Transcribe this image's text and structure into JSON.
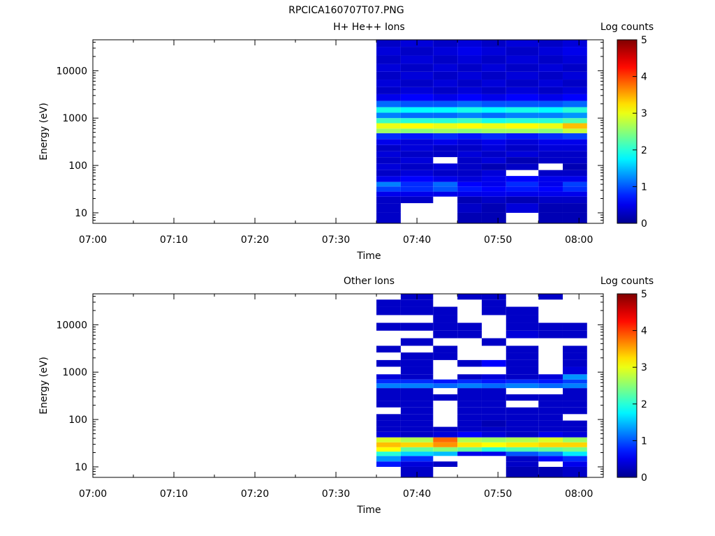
{
  "figure_title": "RPCICA160707T07.PNG",
  "chart_data": [
    {
      "type": "heatmap",
      "title": "H+ He++ Ions",
      "xlabel": "Time",
      "ylabel": "Energy (eV)",
      "x_ticks": [
        "07:00",
        "07:10",
        "07:20",
        "07:30",
        "07:40",
        "07:50",
        "08:00"
      ],
      "x_range": [
        "07:00",
        "08:03"
      ],
      "y_scale": "log",
      "y_ticks": [
        "10",
        "100",
        "1000",
        "10000"
      ],
      "y_range": [
        6,
        45000
      ],
      "colorbar": {
        "label": "Log counts",
        "ticks": [
          "0",
          "1",
          "2",
          "3",
          "4",
          "5"
        ],
        "range": [
          0,
          5
        ]
      },
      "data_start": "07:35",
      "data_end": "08:01",
      "time_bins": [
        "07:35-07:38",
        "07:38-07:42",
        "07:42-07:45",
        "07:45-07:48",
        "07:48-07:51",
        "07:51-07:55",
        "07:55-07:58",
        "07:58-08:01"
      ],
      "energy_bands": [
        {
          "low": 6,
          "high": 10,
          "values": [
            0.3,
            null,
            null,
            0.2,
            0.2,
            null,
            0.2,
            0.2
          ]
        },
        {
          "low": 10,
          "high": 16,
          "values": [
            0.3,
            null,
            null,
            0.3,
            0.2,
            0.4,
            0.2,
            0.2
          ]
        },
        {
          "low": 16,
          "high": 22,
          "values": [
            0.3,
            0.3,
            null,
            0.2,
            0.3,
            0.2,
            0.3,
            0.3
          ]
        },
        {
          "low": 22,
          "high": 28,
          "values": [
            0.5,
            0.5,
            0.5,
            0.5,
            0.5,
            0.5,
            0.5,
            0.5
          ]
        },
        {
          "low": 28,
          "high": 36,
          "values": [
            0.9,
            0.8,
            1.0,
            0.7,
            0.6,
            0.7,
            0.6,
            0.8
          ]
        },
        {
          "low": 36,
          "high": 45,
          "values": [
            1.2,
            0.8,
            1.1,
            0.6,
            0.5,
            0.8,
            0.5,
            0.9
          ]
        },
        {
          "low": 45,
          "high": 60,
          "values": [
            0.5,
            0.6,
            0.5,
            0.4,
            0.5,
            0.6,
            0.5,
            0.5
          ]
        },
        {
          "low": 60,
          "high": 80,
          "values": [
            0.3,
            0.4,
            0.3,
            0.3,
            0.4,
            null,
            0.3,
            0.3
          ]
        },
        {
          "low": 80,
          "high": 110,
          "values": [
            0.4,
            0.3,
            0.4,
            0.3,
            0.2,
            0.3,
            null,
            0.2
          ]
        },
        {
          "low": 110,
          "high": 150,
          "values": [
            0.3,
            0.4,
            null,
            0.3,
            0.4,
            0.2,
            0.3,
            0.3
          ]
        },
        {
          "low": 150,
          "high": 200,
          "values": [
            0.4,
            0.3,
            0.3,
            0.4,
            0.3,
            0.4,
            0.3,
            0.3
          ]
        },
        {
          "low": 200,
          "high": 270,
          "values": [
            0.3,
            0.4,
            0.3,
            0.3,
            0.4,
            0.3,
            0.4,
            0.4
          ]
        },
        {
          "low": 270,
          "high": 360,
          "values": [
            0.5,
            0.4,
            0.5,
            0.4,
            0.5,
            0.4,
            0.5,
            0.5
          ]
        },
        {
          "low": 360,
          "high": 480,
          "values": [
            0.8,
            0.7,
            0.8,
            0.7,
            0.8,
            0.7,
            0.8,
            0.9
          ]
        },
        {
          "low": 480,
          "high": 600,
          "values": [
            2.6,
            2.5,
            2.6,
            2.5,
            2.6,
            2.6,
            2.5,
            2.8
          ]
        },
        {
          "low": 600,
          "high": 780,
          "values": [
            3.0,
            3.1,
            3.0,
            3.1,
            3.0,
            3.1,
            3.0,
            3.4
          ]
        },
        {
          "low": 780,
          "high": 1000,
          "values": [
            2.1,
            2.0,
            2.0,
            2.1,
            1.9,
            2.0,
            2.0,
            2.2
          ]
        },
        {
          "low": 1000,
          "high": 1300,
          "values": [
            1.2,
            1.1,
            1.1,
            1.2,
            1.1,
            1.2,
            1.2,
            1.3
          ]
        },
        {
          "low": 1300,
          "high": 1700,
          "values": [
            1.9,
            1.8,
            1.8,
            1.9,
            1.8,
            1.9,
            1.8,
            2.0
          ]
        },
        {
          "low": 1700,
          "high": 2300,
          "values": [
            1.1,
            1.0,
            1.0,
            1.1,
            1.0,
            1.0,
            1.0,
            1.1
          ]
        },
        {
          "low": 2300,
          "high": 3200,
          "values": [
            0.5,
            0.6,
            0.5,
            0.6,
            0.5,
            0.6,
            0.5,
            0.6
          ]
        },
        {
          "low": 3200,
          "high": 4500,
          "values": [
            0.3,
            0.4,
            0.3,
            0.4,
            0.3,
            0.4,
            0.3,
            0.4
          ]
        },
        {
          "low": 4500,
          "high": 6500,
          "values": [
            0.4,
            0.3,
            0.4,
            0.3,
            0.4,
            0.3,
            0.4,
            0.3
          ]
        },
        {
          "low": 6500,
          "high": 9500,
          "values": [
            0.3,
            0.4,
            0.3,
            0.4,
            0.3,
            0.4,
            0.3,
            0.4
          ]
        },
        {
          "low": 9500,
          "high": 14000,
          "values": [
            0.4,
            0.3,
            0.4,
            0.3,
            0.4,
            0.3,
            0.4,
            0.3
          ]
        },
        {
          "low": 14000,
          "high": 21000,
          "values": [
            0.3,
            0.4,
            0.3,
            0.4,
            0.3,
            0.4,
            0.3,
            0.4
          ]
        },
        {
          "low": 21000,
          "high": 32000,
          "values": [
            0.4,
            0.3,
            0.4,
            0.5,
            0.4,
            0.3,
            0.4,
            0.5
          ]
        },
        {
          "low": 32000,
          "high": 45000,
          "values": [
            0.3,
            0.4,
            0.3,
            0.4,
            0.3,
            0.4,
            0.3,
            0.4
          ]
        }
      ]
    },
    {
      "type": "heatmap",
      "title": "Other Ions",
      "xlabel": "Time",
      "ylabel": "Energy (eV)",
      "x_ticks": [
        "07:00",
        "07:10",
        "07:20",
        "07:30",
        "07:40",
        "07:50",
        "08:00"
      ],
      "x_range": [
        "07:00",
        "08:03"
      ],
      "y_scale": "log",
      "y_ticks": [
        "10",
        "100",
        "1000",
        "10000"
      ],
      "y_range": [
        6,
        45000
      ],
      "colorbar": {
        "label": "Log counts",
        "ticks": [
          "0",
          "1",
          "2",
          "3",
          "4",
          "5"
        ],
        "range": [
          0,
          5
        ]
      },
      "data_start": "07:35",
      "data_end": "08:01",
      "time_bins": [
        "07:35-07:38",
        "07:38-07:42",
        "07:42-07:45",
        "07:45-07:48",
        "07:48-07:51",
        "07:51-07:55",
        "07:55-07:58",
        "07:58-08:01"
      ],
      "energy_bands": [
        {
          "low": 6,
          "high": 10,
          "values": [
            null,
            0.3,
            null,
            null,
            null,
            0.2,
            0.2,
            0.3
          ]
        },
        {
          "low": 10,
          "high": 13,
          "values": [
            0.7,
            0.4,
            0.3,
            null,
            null,
            0.3,
            null,
            0.5
          ]
        },
        {
          "low": 13,
          "high": 17,
          "values": [
            1.3,
            0.8,
            null,
            null,
            null,
            0.3,
            0.6,
            0.8
          ]
        },
        {
          "low": 17,
          "high": 21,
          "values": [
            2.0,
            1.6,
            1.5,
            0.5,
            0.5,
            1.0,
            1.2,
            1.7
          ]
        },
        {
          "low": 21,
          "high": 26,
          "values": [
            3.1,
            2.3,
            2.5,
            2.3,
            2.0,
            2.2,
            2.3,
            2.4
          ]
        },
        {
          "low": 26,
          "high": 33,
          "values": [
            3.4,
            3.3,
            3.6,
            3.2,
            3.1,
            3.2,
            3.3,
            3.3
          ]
        },
        {
          "low": 33,
          "high": 42,
          "values": [
            2.9,
            2.7,
            3.8,
            2.7,
            2.6,
            2.7,
            2.9,
            2.6
          ]
        },
        {
          "low": 42,
          "high": 55,
          "values": [
            0.4,
            0.3,
            0.4,
            0.6,
            0.4,
            0.3,
            0.5,
            0.4
          ]
        },
        {
          "low": 55,
          "high": 70,
          "values": [
            0.3,
            0.3,
            0.3,
            0.3,
            0.3,
            0.3,
            0.3,
            0.3
          ]
        },
        {
          "low": 70,
          "high": 95,
          "values": [
            0.3,
            0.3,
            null,
            0.3,
            0.2,
            0.3,
            0.3,
            0.3
          ]
        },
        {
          "low": 95,
          "high": 130,
          "values": [
            0.3,
            0.3,
            null,
            0.3,
            0.3,
            0.3,
            0.3,
            null
          ]
        },
        {
          "low": 130,
          "high": 180,
          "values": [
            null,
            0.3,
            null,
            0.3,
            0.3,
            0.3,
            0.3,
            0.3
          ]
        },
        {
          "low": 180,
          "high": 250,
          "values": [
            0.3,
            0.3,
            null,
            0.3,
            0.3,
            null,
            0.3,
            0.3
          ]
        },
        {
          "low": 250,
          "high": 340,
          "values": [
            0.3,
            0.3,
            0.3,
            0.3,
            0.3,
            0.3,
            0.3,
            0.3
          ]
        },
        {
          "low": 340,
          "high": 460,
          "values": [
            0.3,
            0.3,
            null,
            0.3,
            0.3,
            null,
            null,
            0.3
          ]
        },
        {
          "low": 460,
          "high": 580,
          "values": [
            1.2,
            1.2,
            1.1,
            1.2,
            1.1,
            1.2,
            1.1,
            1.2
          ]
        },
        {
          "low": 580,
          "high": 700,
          "values": [
            0.8,
            0.8,
            0.7,
            0.8,
            0.7,
            0.8,
            0.7,
            0.9
          ]
        },
        {
          "low": 700,
          "high": 900,
          "values": [
            0.4,
            0.3,
            null,
            0.3,
            0.4,
            0.3,
            0.4,
            1.3
          ]
        },
        {
          "low": 900,
          "high": 1300,
          "values": [
            null,
            0.3,
            null,
            null,
            null,
            0.3,
            null,
            0.4
          ]
        },
        {
          "low": 1300,
          "high": 1800,
          "values": [
            0.3,
            0.3,
            null,
            0.3,
            0.6,
            0.3,
            null,
            0.3
          ]
        },
        {
          "low": 1800,
          "high": 2600,
          "values": [
            null,
            0.3,
            0.3,
            null,
            null,
            0.3,
            null,
            0.3
          ]
        },
        {
          "low": 2600,
          "high": 3600,
          "values": [
            0.3,
            null,
            0.3,
            null,
            null,
            0.3,
            null,
            0.3
          ]
        },
        {
          "low": 3600,
          "high": 5200,
          "values": [
            null,
            0.3,
            null,
            null,
            0.3,
            null,
            null,
            null
          ]
        },
        {
          "low": 5200,
          "high": 7500,
          "values": [
            null,
            null,
            0.3,
            0.3,
            null,
            0.4,
            0.3,
            0.3
          ]
        },
        {
          "low": 7500,
          "high": 11000,
          "values": [
            0.3,
            0.3,
            0.3,
            0.3,
            null,
            0.3,
            0.3,
            0.3
          ]
        },
        {
          "low": 11000,
          "high": 16000,
          "values": [
            null,
            null,
            0.3,
            null,
            null,
            0.3,
            null,
            null
          ]
        },
        {
          "low": 16000,
          "high": 24000,
          "values": [
            0.3,
            0.3,
            0.3,
            null,
            0.3,
            0.3,
            null,
            null
          ]
        },
        {
          "low": 24000,
          "high": 34000,
          "values": [
            0.3,
            0.3,
            null,
            null,
            0.3,
            null,
            null,
            null
          ]
        },
        {
          "low": 34000,
          "high": 45000,
          "values": [
            null,
            0.3,
            null,
            0.3,
            0.3,
            null,
            0.3,
            null
          ]
        }
      ]
    }
  ]
}
